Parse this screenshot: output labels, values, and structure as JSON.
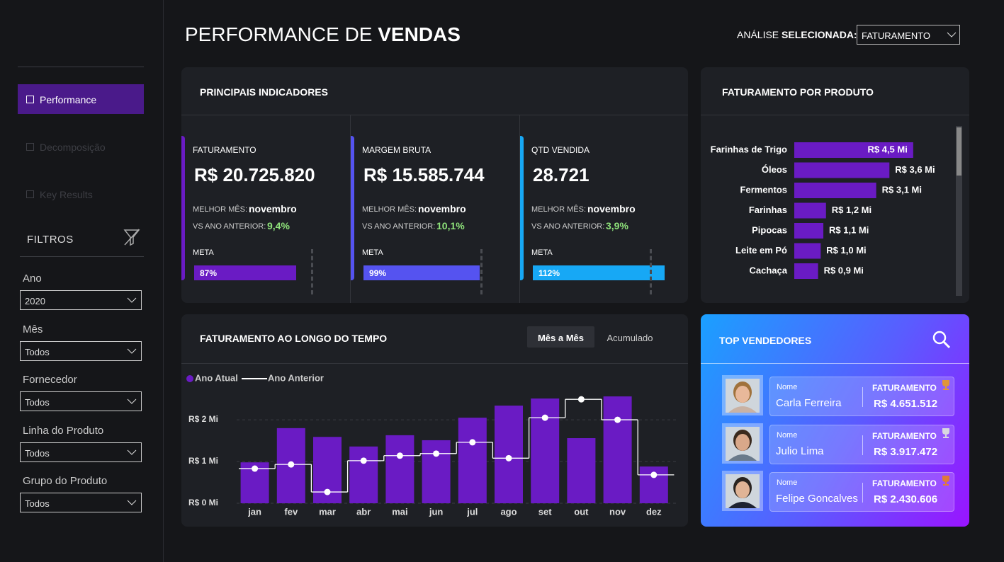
{
  "header": {
    "title": "PERFORMANCE DE",
    "title_bold": "VENDAS",
    "analysis_label": "ANÁLISE",
    "analysis_label_bold": "SELECIONADA:",
    "analysis_value": "FATURAMENTO"
  },
  "nav": [
    "Performance",
    "Decomposição",
    "Key Results"
  ],
  "filters": {
    "title": "FILTROS",
    "items": [
      {
        "label": "Ano",
        "value": "2020"
      },
      {
        "label": "Mês",
        "value": "Todos"
      },
      {
        "label": "Fornecedor",
        "value": "Todos"
      },
      {
        "label": "Linha do Produto",
        "value": "Todos"
      },
      {
        "label": "Grupo do Produto",
        "value": "Todos"
      }
    ]
  },
  "kpi_panel": {
    "title": "PRINCIPAIS INDICADORES",
    "cards": [
      {
        "label": "FATURAMENTO",
        "value": "R$ 20.725.820",
        "best_month_label": "MELHOR MÊS:",
        "best_month": "novembro",
        "vs_label": "VS ANO ANTERIOR:",
        "vs_value": "9,4%",
        "meta_label": "META",
        "meta": {
          "value": 87,
          "label": "87%"
        },
        "color": "#6a1bc4"
      },
      {
        "label": "MARGEM BRUTA",
        "value": "R$ 15.585.744",
        "best_month_label": "MELHOR MÊS:",
        "best_month": "novembro",
        "vs_label": "VS ANO ANTERIOR:",
        "vs_value": "10,1%",
        "meta_label": "META",
        "meta": {
          "value": 99,
          "label": "99%"
        },
        "color": "#5553f0"
      },
      {
        "label": "QTD VENDIDA",
        "value": "28.721",
        "best_month_label": "MELHOR MÊS:",
        "best_month": "novembro",
        "vs_label": "VS ANO ANTERIOR:",
        "vs_value": "3,9%",
        "meta_label": "META",
        "meta": {
          "value": 112,
          "label": "112%"
        },
        "color": "#17a8f5"
      }
    ]
  },
  "chart_data": [
    {
      "type": "bar",
      "title": "FATURAMENTO POR PRODUTO",
      "categories": [
        "Farinhas de Trigo",
        "Óleos",
        "Fermentos",
        "Farinhas",
        "Pipocas",
        "Leite em Pó",
        "Cachaça"
      ],
      "values": [
        4.5,
        3.6,
        3.1,
        1.2,
        1.1,
        1.0,
        0.9
      ],
      "value_labels": [
        "R$ 4,5 Mi",
        "R$ 3,6 Mi",
        "R$ 3,1 Mi",
        "R$ 1,2 Mi",
        "R$ 1,1 Mi",
        "R$ 1,0 Mi",
        "R$ 0,9 Mi"
      ],
      "color": "#6a1bc4"
    },
    {
      "type": "combo",
      "title": "FATURAMENTO AO LONGO DO TEMPO",
      "tabs": [
        "Mês a Mês",
        "Acumulado"
      ],
      "categories": [
        "jan",
        "fev",
        "mar",
        "abr",
        "mai",
        "jun",
        "jul",
        "ago",
        "set",
        "out",
        "nov",
        "dez"
      ],
      "series": [
        {
          "name": "Ano Atual",
          "color": "#6a1bc4",
          "kind": "bar",
          "values": [
            0.98,
            1.8,
            1.59,
            1.36,
            1.63,
            1.51,
            2.05,
            2.34,
            2.51,
            1.56,
            2.56,
            0.88
          ]
        },
        {
          "name": "Ano Anterior",
          "color": "#ffffff",
          "kind": "step",
          "values": [
            0.83,
            0.93,
            0.27,
            1.02,
            1.14,
            1.19,
            1.46,
            1.08,
            2.05,
            2.49,
            2.0,
            0.68
          ]
        }
      ],
      "ylim": [
        0,
        2.9
      ],
      "yticks": [
        {
          "value": 0,
          "label": "R$ 0 Mi"
        },
        {
          "value": 1,
          "label": "R$ 1 Mi"
        },
        {
          "value": 2,
          "label": "R$ 2 Mi"
        }
      ],
      "grid": true
    }
  ],
  "top_sellers": {
    "title": "TOP VENDEDORES",
    "rows": [
      {
        "name_label": "Nome",
        "name": "Carla Ferreira",
        "value_label": "FATURAMENTO",
        "value": "R$ 4.651.512",
        "trophy": "#e0953a"
      },
      {
        "name_label": "Nome",
        "name": "Julio Lima",
        "value_label": "FATURAMENTO",
        "value": "R$ 3.917.472",
        "trophy": "#d8d8e0"
      },
      {
        "name_label": "Nome",
        "name": "Felipe Goncalves",
        "value_label": "FATURAMENTO",
        "value": "R$ 2.430.606",
        "trophy": "#e07a3a"
      }
    ]
  }
}
